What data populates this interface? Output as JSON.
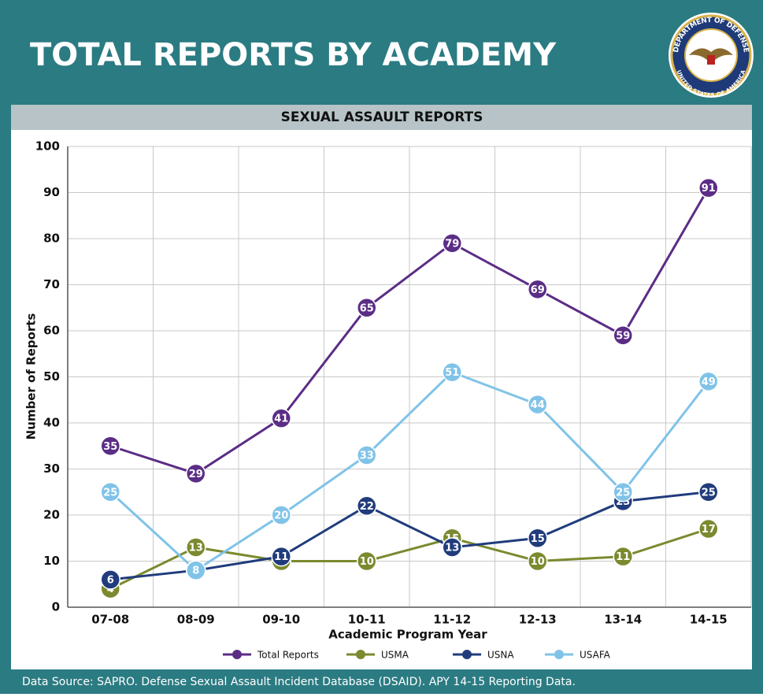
{
  "header": {
    "title": "TOTAL REPORTS BY ACADEMY",
    "seal_top": "DEPARTMENT OF DEFENSE",
    "seal_bottom": "UNITED STATES OF AMERICA"
  },
  "footer": "Data Source: SAPRO. Defense Sexual Assault Incident Database (DSAID). APY 14-15 Reporting Data.",
  "chart_data": {
    "type": "line",
    "title": "SEXUAL ASSAULT REPORTS",
    "x_label": "Academic Program Year",
    "y_label": "Number of Reports",
    "categories": [
      "07-08",
      "08-09",
      "09-10",
      "10-11",
      "11-12",
      "12-13",
      "13-14",
      "14-15"
    ],
    "series": [
      {
        "name": "Total Reports",
        "color": "#5b2d86",
        "values": [
          35,
          29,
          41,
          65,
          79,
          69,
          59,
          91
        ]
      },
      {
        "name": "USMA",
        "color": "#7b8a2f",
        "values": [
          4,
          13,
          10,
          10,
          15,
          10,
          11,
          17
        ]
      },
      {
        "name": "USNA",
        "color": "#203c7c",
        "values": [
          6,
          8,
          11,
          22,
          13,
          15,
          23,
          25
        ]
      },
      {
        "name": "USAFA",
        "color": "#80c3e8",
        "values": [
          25,
          8,
          20,
          33,
          51,
          44,
          25,
          49
        ]
      }
    ],
    "ylim": [
      0,
      100
    ],
    "yticks": [
      0,
      10,
      20,
      30,
      40,
      50,
      60,
      70,
      80,
      90,
      100
    ],
    "grid": true
  }
}
